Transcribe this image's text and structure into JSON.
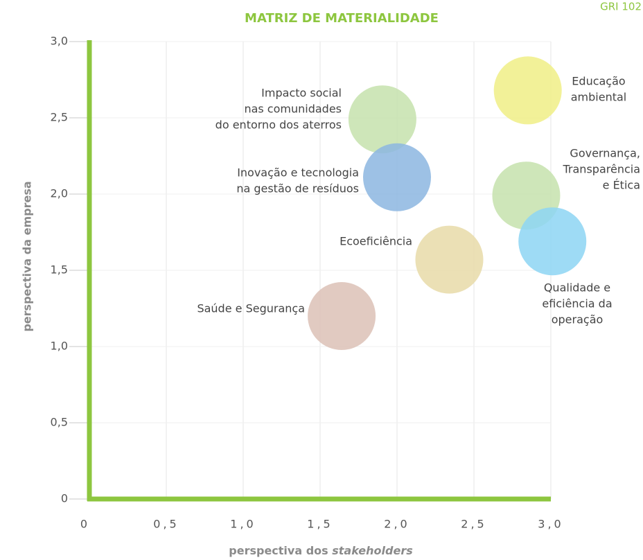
{
  "chart_data": {
    "type": "scatter",
    "title": "MATRIZ DE MATERIALIDADE",
    "code": "GRI 102",
    "x_label": [
      "perspectiva dos ",
      "stakeholders"
    ],
    "y_label": "perspectiva da empresa",
    "xlim": [
      0,
      3
    ],
    "ylim": [
      0,
      3
    ],
    "xticks": [
      0,
      {
        "value": 0.5,
        "label": "0,5"
      },
      {
        "value": 1,
        "label": "1,0"
      },
      {
        "value": 1.5,
        "label": "1,5"
      },
      {
        "value": 2,
        "label": "2,0"
      },
      {
        "value": 2.5,
        "label": "2,5"
      },
      {
        "value": 3,
        "label": "3,0"
      }
    ],
    "yticks": [
      0,
      {
        "value": 0.5,
        "label": "0,5"
      },
      {
        "value": 1,
        "label": "1,0"
      },
      {
        "value": 1.5,
        "label": "1,5"
      },
      {
        "value": 2,
        "label": "2,0"
      },
      {
        "value": 2.5,
        "label": "2,5"
      },
      {
        "value": 3,
        "label": "3,0"
      }
    ],
    "grid": true,
    "points": [
      {
        "label": [
          "Educação",
          "ambiental"
        ],
        "x": 2.85,
        "y": 2.68,
        "color": "#f0ef86"
      },
      {
        "label": [
          "Impacto social",
          "nas comunidades",
          "do entorno dos aterros"
        ],
        "x": 1.905,
        "y": 2.49,
        "color": "#c6e2ad"
      },
      {
        "label": [
          "Inovação e tecnologia",
          "na gestão de resíduos"
        ],
        "x": 2.0,
        "y": 2.11,
        "color": "#8cb6e0"
      },
      {
        "label": [
          "Governança,",
          "Transparência",
          "e Ética"
        ],
        "x": 2.84,
        "y": 1.99,
        "color": "#c6e2ad"
      },
      {
        "label": [
          "Qualidade e",
          "eficiência da",
          "operação"
        ],
        "x": 3.01,
        "y": 1.69,
        "color": "#8dd5f3"
      },
      {
        "label": [
          "Ecoeficiência"
        ],
        "x": 2.34,
        "y": 1.57,
        "color": "#e8daa8"
      },
      {
        "label": [
          "Saúde e Segurança"
        ],
        "x": 1.64,
        "y": 1.2,
        "color": "#dcc1b6"
      }
    ]
  }
}
